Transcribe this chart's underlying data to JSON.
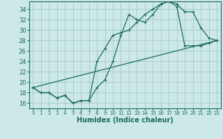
{
  "xlabel": "Humidex (Indice chaleur)",
  "bg_color": "#cce8e8",
  "grid_color": "#aacccc",
  "line_color": "#1a6b5a",
  "xlim": [
    -0.5,
    23.5
  ],
  "ylim": [
    15.0,
    35.5
  ],
  "xticks": [
    0,
    1,
    2,
    3,
    4,
    5,
    6,
    7,
    8,
    9,
    10,
    11,
    12,
    13,
    14,
    15,
    16,
    17,
    18,
    19,
    20,
    21,
    22,
    23
  ],
  "yticks": [
    16,
    18,
    20,
    22,
    24,
    26,
    28,
    30,
    32,
    34
  ],
  "line1_x": [
    0,
    1,
    2,
    3,
    4,
    5,
    6,
    7,
    8,
    9,
    10,
    11,
    12,
    13,
    14,
    15,
    16,
    17,
    18,
    19,
    20,
    21,
    22,
    23
  ],
  "line1_y": [
    19.0,
    18.0,
    18.0,
    17.0,
    17.5,
    16.0,
    16.5,
    16.5,
    19.0,
    20.5,
    24.0,
    29.0,
    33.0,
    32.0,
    31.5,
    33.0,
    35.0,
    35.5,
    35.0,
    33.5,
    33.5,
    30.5,
    28.5,
    28.0
  ],
  "line2_x": [
    0,
    1,
    2,
    3,
    4,
    5,
    6,
    7,
    8,
    9,
    10,
    11,
    12,
    13,
    14,
    15,
    16,
    17,
    18,
    19,
    20,
    21,
    22,
    23
  ],
  "line2_y": [
    19.0,
    18.0,
    18.0,
    17.0,
    17.5,
    16.0,
    16.5,
    16.5,
    24.0,
    26.5,
    29.0,
    29.5,
    30.0,
    31.5,
    33.0,
    34.0,
    35.0,
    35.5,
    34.5,
    27.0,
    27.0,
    27.0,
    27.5,
    28.0
  ],
  "line3_x": [
    0,
    23
  ],
  "line3_y": [
    19.0,
    28.0
  ]
}
